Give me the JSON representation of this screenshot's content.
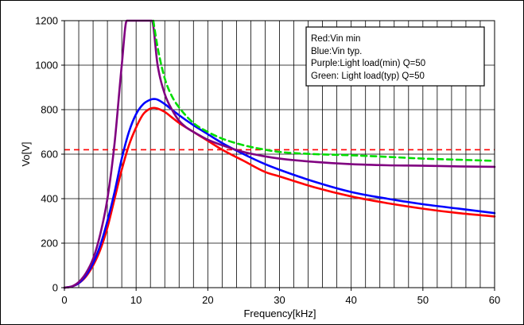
{
  "chart_data": {
    "type": "line",
    "xlabel": "Frequency[kHz]",
    "ylabel": "Vo[V]",
    "xlim": [
      0,
      60
    ],
    "ylim": [
      0,
      1200
    ],
    "x_ticks": [
      0,
      10,
      20,
      30,
      40,
      50,
      60
    ],
    "y_ticks": [
      0,
      200,
      400,
      600,
      800,
      1000,
      1200
    ],
    "x_minor_grid_step": 2,
    "grid": true,
    "legend_position": "top-right",
    "legend": [
      "Red:Vin min",
      "Blue:Vin typ.",
      "Purple:Light load(min) Q=50",
      "Green: Light load(typ) Q=50"
    ],
    "reference_lines": [
      {
        "type": "horizontal",
        "y": 620,
        "style": "dashed",
        "color": "#ff0000"
      }
    ],
    "series": [
      {
        "color": "#ff0000",
        "style": "solid",
        "x": [
          0,
          1,
          2,
          3,
          4,
          5,
          6,
          7,
          8,
          9,
          10,
          11,
          12,
          12.5,
          13,
          14,
          15,
          16,
          18,
          20,
          22,
          25,
          28,
          30,
          35,
          40,
          45,
          50,
          55,
          60
        ],
        "y": [
          0,
          5,
          20,
          50,
          100,
          170,
          270,
          400,
          530,
          640,
          720,
          780,
          805,
          808,
          805,
          790,
          765,
          740,
          700,
          660,
          620,
          570,
          520,
          500,
          450,
          410,
          380,
          355,
          335,
          320
        ]
      },
      {
        "color": "#0000ff",
        "style": "solid",
        "x": [
          0,
          1,
          2,
          3,
          4,
          5,
          6,
          7,
          8,
          9,
          10,
          11,
          12,
          12.5,
          13,
          14,
          15,
          16,
          18,
          20,
          22,
          25,
          28,
          30,
          35,
          40,
          45,
          50,
          55,
          60
        ],
        "y": [
          0,
          5,
          20,
          55,
          110,
          190,
          300,
          430,
          580,
          700,
          780,
          825,
          845,
          848,
          845,
          825,
          800,
          775,
          730,
          690,
          650,
          600,
          555,
          530,
          475,
          430,
          400,
          375,
          355,
          335
        ]
      },
      {
        "color": "#800080",
        "style": "solid",
        "x": [
          0,
          1,
          2,
          3,
          4,
          5,
          6,
          7,
          8,
          8.7,
          12.2,
          13,
          14,
          15,
          16,
          17,
          18,
          20,
          22,
          25,
          28,
          30,
          35,
          40,
          45,
          50,
          55,
          60
        ],
        "y": [
          0,
          5,
          25,
          65,
          130,
          240,
          400,
          650,
          1000,
          1200,
          1200,
          1000,
          870,
          800,
          750,
          720,
          700,
          665,
          640,
          610,
          590,
          580,
          565,
          555,
          550,
          548,
          545,
          543
        ]
      },
      {
        "color": "#00dd00",
        "style": "dashed",
        "x": [
          12.4,
          13,
          14,
          15,
          16,
          18,
          20,
          22,
          25,
          28,
          30,
          35,
          40,
          45,
          50,
          55,
          60
        ],
        "y": [
          1200,
          1080,
          940,
          860,
          810,
          740,
          700,
          670,
          640,
          620,
          610,
          600,
          595,
          588,
          580,
          575,
          570
        ]
      }
    ]
  }
}
